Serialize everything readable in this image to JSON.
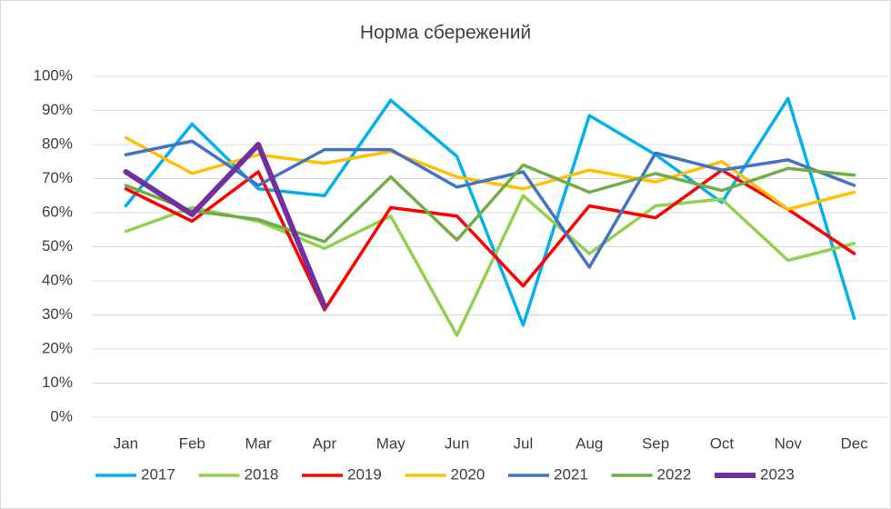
{
  "chart_data": {
    "type": "line",
    "title": "Норма сбережений",
    "categories": [
      "Jan",
      "Feb",
      "Mar",
      "Apr",
      "May",
      "Jun",
      "Jul",
      "Aug",
      "Sep",
      "Oct",
      "Nov",
      "Dec"
    ],
    "series": [
      {
        "name": "2017",
        "color": "#00b0f0",
        "values": [
          62,
          86,
          67,
          65,
          93,
          76.5,
          27,
          88.5,
          77,
          63,
          93.5,
          29
        ]
      },
      {
        "name": "2018",
        "color": "#92d050",
        "values": [
          54.5,
          61.5,
          57.5,
          49.5,
          59,
          24,
          65,
          48,
          62,
          64,
          46,
          51
        ]
      },
      {
        "name": "2019",
        "color": "#ff0000",
        "values": [
          67,
          57.5,
          72,
          31.5,
          61.5,
          59,
          38.5,
          62,
          58.5,
          72.5,
          61,
          48
        ]
      },
      {
        "name": "2020",
        "color": "#ffc000",
        "values": [
          82,
          71.5,
          77,
          74.5,
          78,
          70.5,
          67,
          72.5,
          69,
          75,
          61,
          66
        ]
      },
      {
        "name": "2021",
        "color": "#4472c4",
        "values": [
          77,
          81,
          68,
          78.5,
          78.5,
          67.5,
          72,
          44,
          77.5,
          72.5,
          75.5,
          68
        ]
      },
      {
        "name": "2022",
        "color": "#70ad47",
        "values": [
          68,
          60.5,
          58,
          51.5,
          70.5,
          52,
          74,
          66,
          71.5,
          66.5,
          73,
          71
        ]
      },
      {
        "name": "2023",
        "color": "#7030a0",
        "values": [
          72,
          59.5,
          80,
          32.5,
          null,
          null,
          null,
          null,
          null,
          null,
          null,
          null
        ]
      }
    ],
    "ylim": [
      0,
      100
    ],
    "yticks": [
      {
        "value": 0,
        "label": "0%"
      },
      {
        "value": 10,
        "label": "10%"
      },
      {
        "value": 20,
        "label": "20%"
      },
      {
        "value": 30,
        "label": "30%"
      },
      {
        "value": 40,
        "label": "40%"
      },
      {
        "value": 50,
        "label": "50%"
      },
      {
        "value": 60,
        "label": "60%"
      },
      {
        "value": 70,
        "label": "70%"
      },
      {
        "value": 80,
        "label": "80%"
      },
      {
        "value": 90,
        "label": "90%"
      },
      {
        "value": 100,
        "label": "100%"
      }
    ],
    "grid": true,
    "legend": "bottom"
  }
}
